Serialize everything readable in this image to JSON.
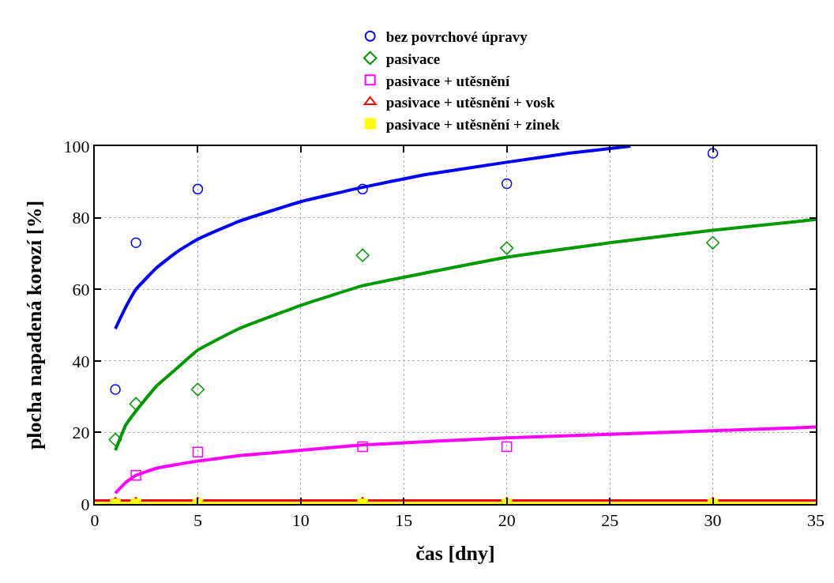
{
  "chart_data": {
    "type": "scatter",
    "xlabel": "čas [dny]",
    "ylabel": "plocha napadená korozí [%]",
    "xlim": [
      0,
      35
    ],
    "ylim": [
      0,
      100
    ],
    "xticks": [
      0,
      5,
      10,
      15,
      20,
      25,
      30,
      35
    ],
    "yticks": [
      0,
      20,
      40,
      60,
      80,
      100
    ],
    "grid": true,
    "legend": "top",
    "series": [
      {
        "name": "bez povrchové úpravy",
        "color": "#0000ff",
        "marker": "circle",
        "x": [
          1,
          2,
          5,
          13,
          20,
          30
        ],
        "values": [
          32,
          73,
          88,
          88,
          89.5,
          98
        ]
      },
      {
        "name": "pasivace",
        "color": "#009900",
        "marker": "diamond",
        "x": [
          1,
          2,
          5,
          13,
          20,
          30
        ],
        "values": [
          18,
          28,
          32,
          69.5,
          71.5,
          73
        ]
      },
      {
        "name": "pasivace + utěsnění",
        "color": "#ff00ff",
        "marker": "square",
        "x": [
          1,
          2,
          5,
          13,
          20
        ],
        "values": [
          0,
          8,
          14.5,
          16,
          16
        ]
      },
      {
        "name": "pasivace + utěsnění + vosk",
        "color": "#ff0000",
        "marker": "triangle",
        "x": [
          1,
          2,
          5,
          13,
          20,
          30
        ],
        "values": [
          0.5,
          0.5,
          0.5,
          0.5,
          0.5,
          0.5
        ]
      },
      {
        "name": "pasivace + utěsnění + zinek",
        "color": "#ffff00",
        "marker": "square",
        "x": [
          1,
          2,
          5,
          13,
          20,
          30
        ],
        "values": [
          0,
          0,
          0,
          0,
          0,
          0
        ]
      },
      {
        "type": "line",
        "color": "#0000ff",
        "x": [
          1,
          1.5,
          2,
          3,
          4,
          5,
          7,
          10,
          13,
          16,
          20,
          23,
          26
        ],
        "values": [
          49,
          55,
          60,
          66,
          70.5,
          74,
          79,
          84.5,
          88.5,
          92,
          95.5,
          98,
          100
        ]
      },
      {
        "type": "line",
        "color": "#009900",
        "x": [
          1,
          1.5,
          2,
          3,
          4,
          5,
          7,
          10,
          13,
          16,
          20,
          25,
          30,
          35
        ],
        "values": [
          15,
          22,
          26,
          33,
          38,
          43,
          49,
          55.5,
          61,
          64.5,
          69,
          73,
          76.5,
          79.5
        ]
      },
      {
        "type": "line",
        "color": "#ff00ff",
        "x": [
          1,
          1.5,
          2,
          3,
          5,
          7,
          10,
          13,
          20,
          25,
          30,
          35
        ],
        "values": [
          3,
          6,
          8,
          10,
          12,
          13.5,
          15,
          16.5,
          18.5,
          19.5,
          20.5,
          21.5
        ]
      },
      {
        "type": "line",
        "color": "#ffff00",
        "x": [
          0,
          35
        ],
        "values": [
          0.2,
          0.2
        ]
      },
      {
        "type": "line",
        "color": "#ff0000",
        "x": [
          0,
          35
        ],
        "values": [
          1,
          1
        ]
      }
    ]
  }
}
